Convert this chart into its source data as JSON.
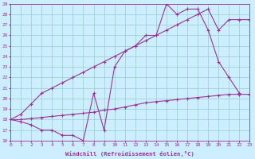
{
  "line1_x": [
    0,
    1,
    2,
    3,
    4,
    5,
    6,
    7,
    8,
    9,
    10,
    11,
    12,
    13,
    14,
    15,
    16,
    17,
    18,
    19,
    20,
    21,
    22,
    23
  ],
  "line1_y": [
    18.0,
    17.8,
    17.5,
    17.0,
    17.0,
    16.5,
    16.5,
    16.0,
    20.5,
    17.0,
    23.0,
    24.5,
    25.0,
    26.0,
    26.0,
    29.0,
    28.0,
    28.5,
    28.5,
    26.5,
    23.5,
    22.0,
    20.5,
    null
  ],
  "line2_x": [
    0,
    1,
    2,
    3,
    4,
    5,
    6,
    7,
    8,
    9,
    10,
    11,
    12,
    13,
    14,
    15,
    16,
    17,
    18,
    19,
    20,
    21,
    22,
    23
  ],
  "line2_y": [
    18.0,
    18.5,
    19.5,
    20.5,
    21.0,
    21.5,
    22.0,
    22.5,
    23.0,
    23.5,
    24.0,
    24.5,
    25.0,
    25.5,
    26.0,
    26.5,
    27.0,
    27.5,
    28.0,
    28.5,
    26.5,
    27.5,
    27.5,
    27.5
  ],
  "line3_x": [
    0,
    1,
    2,
    3,
    4,
    5,
    6,
    7,
    8,
    9,
    10,
    11,
    12,
    13,
    14,
    15,
    16,
    17,
    18,
    19,
    20,
    21,
    22,
    23
  ],
  "line3_y": [
    18.0,
    18.0,
    18.1,
    18.2,
    18.3,
    18.4,
    18.5,
    18.6,
    18.7,
    18.9,
    19.0,
    19.2,
    19.4,
    19.6,
    19.7,
    19.8,
    19.9,
    20.0,
    20.1,
    20.2,
    20.3,
    20.4,
    20.4,
    20.4
  ],
  "line_color": "#993399",
  "bg_color": "#cceeff",
  "grid_color": "#99cccc",
  "xlabel": "Windchill (Refroidissement éolien,°C)",
  "xlim_min": 0,
  "xlim_max": 23,
  "ylim_min": 16,
  "ylim_max": 29,
  "yticks": [
    16,
    17,
    18,
    19,
    20,
    21,
    22,
    23,
    24,
    25,
    26,
    27,
    28,
    29
  ],
  "xticks": [
    0,
    1,
    2,
    3,
    4,
    5,
    6,
    7,
    8,
    9,
    10,
    11,
    12,
    13,
    14,
    15,
    16,
    17,
    18,
    19,
    20,
    21,
    22,
    23
  ],
  "marker": "+",
  "markersize": 3,
  "linewidth": 0.8,
  "tick_fontsize": 4.5,
  "xlabel_fontsize": 5.2
}
